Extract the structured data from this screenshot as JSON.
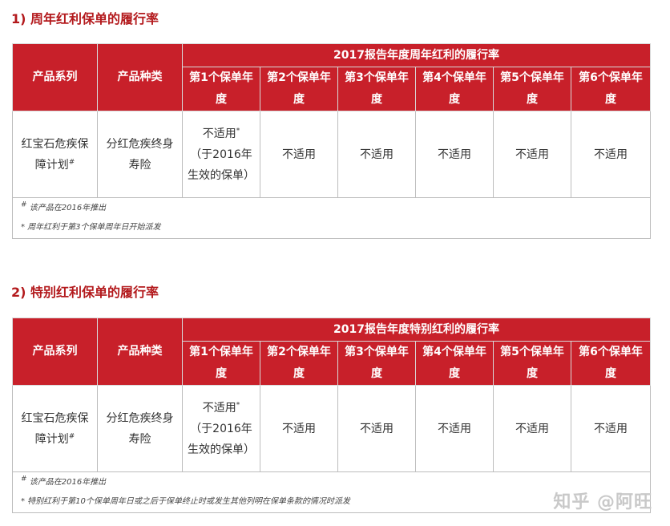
{
  "sections": [
    {
      "title": "1) 周年红利保单的履行率",
      "header": {
        "col_series": "产品系列",
        "col_type": "产品种类",
        "group_title": "2017报告年度周年红利的履行率",
        "years": [
          "第1个保单年度",
          "第2个保单年度",
          "第3个保单年度",
          "第4个保单年度",
          "第5个保单年度",
          "第6个保单年度"
        ]
      },
      "row": {
        "series": "红宝石危疾保障计划",
        "series_mark": "#",
        "type": "分红危疾终身寿险",
        "year1_main": "不适用",
        "year1_mark": "*",
        "year1_note": "（于2016年生效的保单）",
        "other_years": [
          "不适用",
          "不适用",
          "不适用",
          "不适用",
          "不适用"
        ]
      },
      "notes": {
        "n1_mark": "#",
        "n1_text": "该产品在2016年推出",
        "n2_text": "* 周年红利于第3个保单周年日开始派发"
      }
    },
    {
      "title": "2) 特别红利保单的履行率",
      "header": {
        "col_series": "产品系列",
        "col_type": "产品种类",
        "group_title": "2017报告年度特别红利的履行率",
        "years": [
          "第1个保单年度",
          "第2个保单年度",
          "第3个保单年度",
          "第4个保单年度",
          "第5个保单年度",
          "第6个保单年度"
        ]
      },
      "row": {
        "series": "红宝石危疾保障计划",
        "series_mark": "#",
        "type": "分红危疾终身寿险",
        "year1_main": "不适用",
        "year1_mark": "*",
        "year1_note": "（于2016年生效的保单）",
        "other_years": [
          "不适用",
          "不适用",
          "不适用",
          "不适用",
          "不适用"
        ]
      },
      "notes": {
        "n1_mark": "#",
        "n1_text": "该产品在2016年推出",
        "n2_text": "* 特别红利于第10个保单周年日或之后于保单终止时或发生其他列明在保单条款的情况时派发"
      }
    }
  ],
  "watermark": "知乎 @阿旺",
  "colors": {
    "header_red": "#c8202a",
    "title_red": "#b3191c"
  }
}
